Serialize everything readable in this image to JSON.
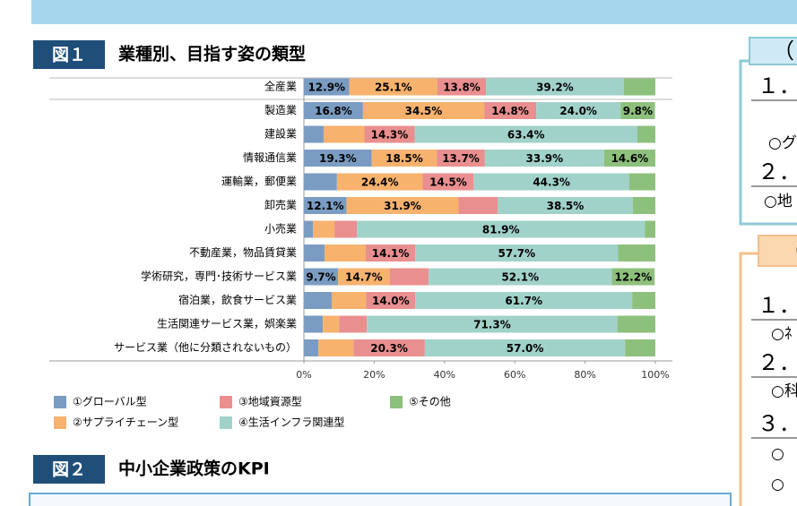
{
  "figure1": {
    "label": "図１"
  },
  "figure2": {
    "label": "図２",
    "title": "中小企業政策のKPI"
  },
  "side_panel_1": {
    "tab": "（",
    "lines": [
      "１．",
      "○グ",
      "２．",
      "○地"
    ]
  },
  "side_panel_2": {
    "tab": "（",
    "lines": [
      "１．",
      "○ﾈ",
      "２．",
      "○科",
      "３．",
      "○",
      "○"
    ]
  },
  "chart_data": {
    "type": "bar",
    "orientation": "horizontal",
    "stacked": true,
    "title": "業種別、目指す姿の類型",
    "categories": [
      "全産業",
      "製造業",
      "建設業",
      "情報通信業",
      "運輸業，郵便業",
      "卸売業",
      "小売業",
      "不動産業，物品賃貸業",
      "学術研究，専門･技術サービス業",
      "宿泊業，飲食サービス業",
      "生活関連サービス業，娯楽業",
      "サービス業（他に分類されないもの）"
    ],
    "series": [
      {
        "name": "①グローバル型",
        "color": "#7b9cc2",
        "values": [
          12.9,
          16.8,
          5.6,
          19.3,
          9.4,
          12.1,
          2.6,
          5.9,
          9.7,
          7.9,
          5.4,
          4.1
        ],
        "value_labels": [
          "12.9%",
          "16.8%",
          null,
          "19.3%",
          null,
          "12.1%",
          null,
          null,
          "9.7%",
          null,
          null,
          null
        ]
      },
      {
        "name": "②サプライチェーン型",
        "color": "#f7b26e",
        "values": [
          25.1,
          34.5,
          11.6,
          18.5,
          24.4,
          31.9,
          6.1,
          11.7,
          14.7,
          9.8,
          4.6,
          10.0
        ],
        "value_labels": [
          "25.1%",
          "34.5%",
          null,
          "18.5%",
          "24.4%",
          "31.9%",
          null,
          null,
          "14.7%",
          null,
          null,
          null
        ]
      },
      {
        "name": "③地域資源型",
        "color": "#e98f8f",
        "values": [
          13.8,
          14.8,
          14.3,
          13.7,
          14.5,
          11.1,
          6.4,
          14.1,
          11.1,
          14.0,
          7.9,
          20.3
        ],
        "value_labels": [
          "13.8%",
          "14.8%",
          "14.3%",
          "13.7%",
          "14.5%",
          null,
          null,
          "14.1%",
          null,
          "14.0%",
          null,
          "20.3%"
        ]
      },
      {
        "name": "④生活インフラ関連型",
        "color": "#a1d2ca",
        "values": [
          39.2,
          24.0,
          63.4,
          33.9,
          44.3,
          38.5,
          81.9,
          57.7,
          52.1,
          61.7,
          71.3,
          57.0
        ],
        "value_labels": [
          "39.2%",
          "24.0%",
          "63.4%",
          "33.9%",
          "44.3%",
          "38.5%",
          "81.9%",
          "57.7%",
          "52.1%",
          "61.7%",
          "71.3%",
          "57.0%"
        ]
      },
      {
        "name": "⑤その他",
        "color": "#8dc07c",
        "values": [
          9.0,
          9.8,
          5.1,
          14.6,
          7.4,
          6.4,
          3.0,
          10.6,
          12.2,
          6.6,
          10.8,
          8.6
        ],
        "value_labels": [
          null,
          "9.8%",
          null,
          "14.6%",
          null,
          null,
          null,
          null,
          "12.2%",
          null,
          null,
          null
        ]
      }
    ],
    "xlim": [
      0,
      100
    ],
    "xticks": [
      {
        "value": 0,
        "label": "0%"
      },
      {
        "value": 20,
        "label": "20%"
      },
      {
        "value": 40,
        "label": "40%"
      },
      {
        "value": 60,
        "label": "60%"
      },
      {
        "value": 80,
        "label": "80%"
      },
      {
        "value": 100,
        "label": "100%"
      }
    ],
    "grid": false
  }
}
